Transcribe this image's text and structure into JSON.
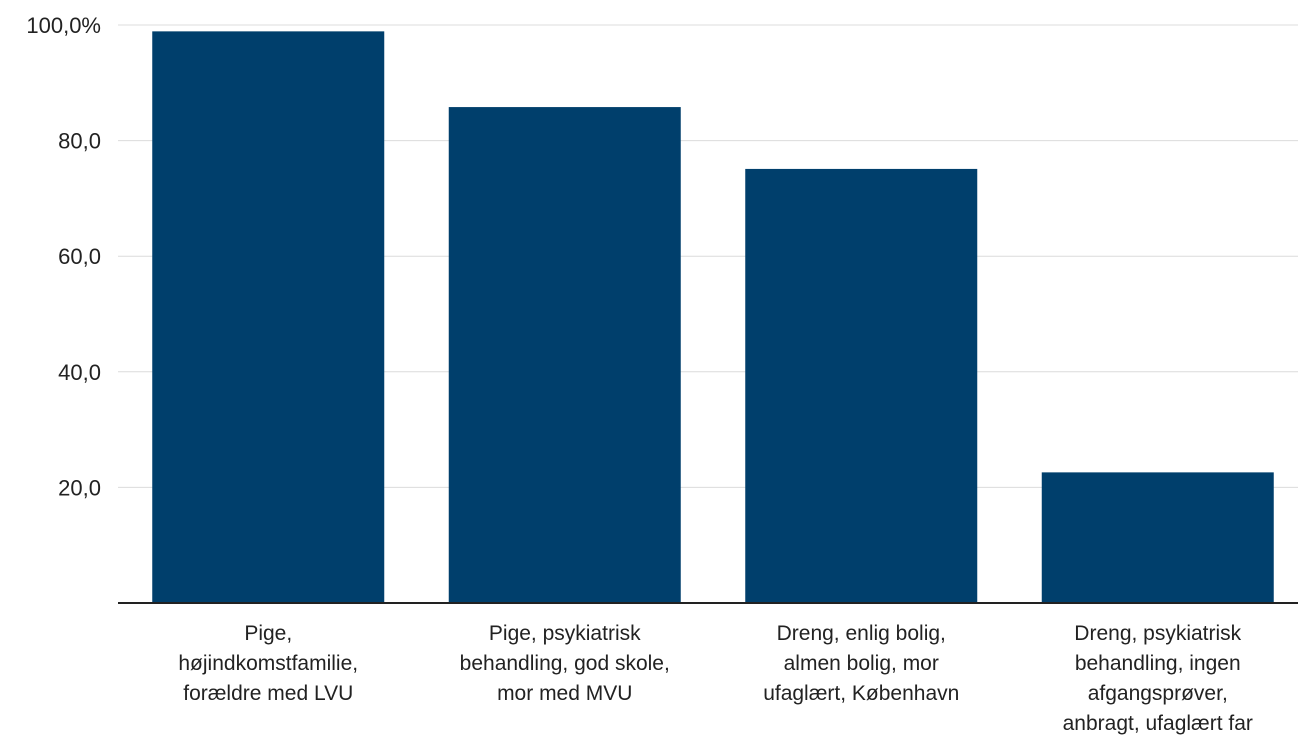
{
  "chart_data": {
    "type": "bar",
    "title": "",
    "xlabel": "",
    "ylabel": "",
    "ylim": [
      0,
      100
    ],
    "grid": true,
    "bar_color": "#003f6c",
    "y_ticks": [
      {
        "value": 20,
        "label": "20,0"
      },
      {
        "value": 40,
        "label": "40,0"
      },
      {
        "value": 60,
        "label": "60,0"
      },
      {
        "value": 80,
        "label": "80,0"
      },
      {
        "value": 100,
        "label": "100,0%"
      }
    ],
    "categories": [
      [
        "Pige,",
        "højindkomstfamilie,",
        "forældre med LVU"
      ],
      [
        "Pige, psykiatrisk",
        "behandling, god skole,",
        "mor med MVU"
      ],
      [
        "Dreng, enlig bolig,",
        "almen bolig, mor",
        "ufaglært, København"
      ],
      [
        "Dreng, psykiatrisk",
        "behandling, ingen",
        "afgangsprøver,",
        "anbragt, ufaglært far"
      ]
    ],
    "values": [
      98.9,
      85.8,
      75.1,
      22.6
    ]
  }
}
